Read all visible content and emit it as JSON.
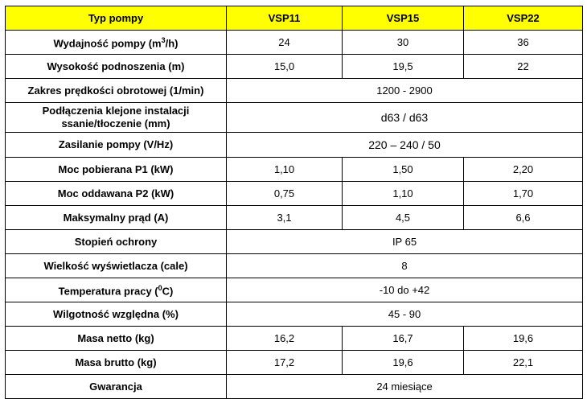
{
  "header": [
    "Typ pompy",
    "VSP11",
    "VSP15",
    "VSP22"
  ],
  "rows": [
    {
      "label_parts": [
        "Wydajność pompy (m",
        "3",
        "/h)"
      ],
      "values": [
        "24",
        "30",
        "36"
      ]
    },
    {
      "label": "Wysokość podnoszenia (m)",
      "values": [
        "15,0",
        "19,5",
        "22"
      ]
    },
    {
      "label": "Zakres prędkości obrotowej (1/min)",
      "merged": "1200 - 2900"
    },
    {
      "label_lines": [
        "Podłączenia klejone instalacji",
        "ssanie/tłoczenie (mm)"
      ],
      "merged": "d63 / d63"
    },
    {
      "label": "Zasilanie pompy (V/Hz)",
      "merged": "220 – 240 / 50"
    },
    {
      "label": "Moc pobierana P1 (kW)",
      "values": [
        "1,10",
        "1,50",
        "2,20"
      ]
    },
    {
      "label": "Moc oddawana P2 (kW)",
      "values": [
        "0,75",
        "1,10",
        "1,70"
      ]
    },
    {
      "label": "Maksymalny prąd (A)",
      "values": [
        "3,1",
        "4,5",
        "6,6"
      ]
    },
    {
      "label": "Stopień ochrony",
      "merged": "IP 65"
    },
    {
      "label": "Wielkość wyświetlacza (cale)",
      "merged": "8"
    },
    {
      "label_parts": [
        "Temperatura pracy (",
        "0",
        "C)"
      ],
      "merged": "-10 do +42"
    },
    {
      "label": "Wilgotność względna (%)",
      "merged": "45 - 90"
    },
    {
      "label": "Masa netto (kg)",
      "values": [
        "16,2",
        "16,7",
        "19,6"
      ]
    },
    {
      "label": "Masa brutto (kg)",
      "values": [
        "17,2",
        "19,6",
        "22,1"
      ]
    },
    {
      "label": "Gwarancja",
      "merged": "24 miesiące"
    }
  ],
  "colors": {
    "header_bg": "#ffff00",
    "border": "#000000"
  }
}
